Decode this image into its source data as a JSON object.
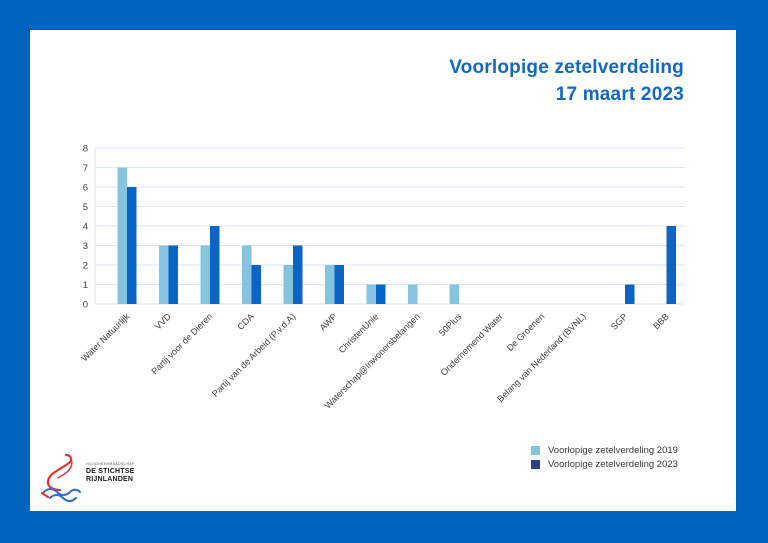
{
  "frame": {
    "border_color": "#0064BE",
    "panel_background": "#FFFFFF"
  },
  "title": {
    "line1": "Voorlopige zetelverdeling",
    "line2": "17 maart 2023",
    "color": "#1168C5"
  },
  "chart_data": {
    "type": "bar",
    "title": "Voorlopige zetelverdeling 17 maart 2023",
    "xlabel": "",
    "ylabel": "",
    "ylim": [
      0,
      8
    ],
    "yticks": [
      0,
      1,
      2,
      3,
      4,
      5,
      6,
      7,
      8
    ],
    "grid": true,
    "legend_position": "bottom-right",
    "gridline_color": "#DEE6F3",
    "axis_text_color": "#3F3F3F",
    "categories": [
      "Water Natuurlijk",
      "VVD",
      "Partij voor de Dieren",
      "CDA",
      "Partij van de Arbeid (P.v.d.A)",
      "AWP",
      "ChristenUnie",
      "Waterschap@Inwonersbelangen",
      "50Plus",
      "Ondernemend Water",
      "De Groenen",
      "Belang van Nederland (BVNL)",
      "SGP",
      "BBB"
    ],
    "series": [
      {
        "name": "Voorlopige zetelverdeling 2019",
        "color": "#85C3DF",
        "legend_color": "#85C3DF",
        "values": [
          7,
          3,
          3,
          3,
          2,
          2,
          1,
          1,
          1,
          0,
          0,
          0,
          0,
          0
        ]
      },
      {
        "name": "Voorlopige zetelverdeling 2023",
        "color": "#0A65C4",
        "legend_color": "#2A4189",
        "values": [
          6,
          3,
          4,
          2,
          3,
          2,
          1,
          0,
          0,
          0,
          0,
          0,
          1,
          4
        ]
      }
    ]
  },
  "logo": {
    "org_small": "HOOGHEEMRAADSCHAP",
    "org_line1": "DE STICHTSE",
    "org_line2": "RIJNLANDEN",
    "swan_red": "#E5332A",
    "water_blue": "#2E6FC6"
  }
}
